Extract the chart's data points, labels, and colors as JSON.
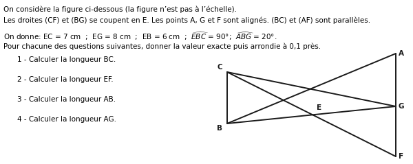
{
  "line1": "On considère la figure ci-dessous (la figure n’est pas à l’échelle).",
  "line2": "Les droites (CF) et (BG) se coupent en E. Les points A, G et F sont alignés. (BC) et (AF) sont parallèles.",
  "line3": "On donne: EC = 7 cm  ;  EG = 8 cm  ;  EB = 6 cm  ;  ",
  "line3_ebc": "EBC",
  "line3_mid": " = 90°;  ",
  "line3_abg": "ABG",
  "line3_end": " = 20°.",
  "line4": "Pour chacune des questions suivantes, donner la valeur exacte puis arrondie à 0,1 près.",
  "q1": "1 - Calculer la longueur BC.",
  "q2": "2 - Calculer la longueur EF.",
  "q3": "3 - Calculer la longueur AB.",
  "q4": "4 - Calculer la longueur AG.",
  "text_color": "#000000",
  "bg_color": "#ffffff",
  "fig_lw": 1.4,
  "fig_col": "#1a1a1a",
  "label_fs": 7.5,
  "text_fs": 7.5
}
